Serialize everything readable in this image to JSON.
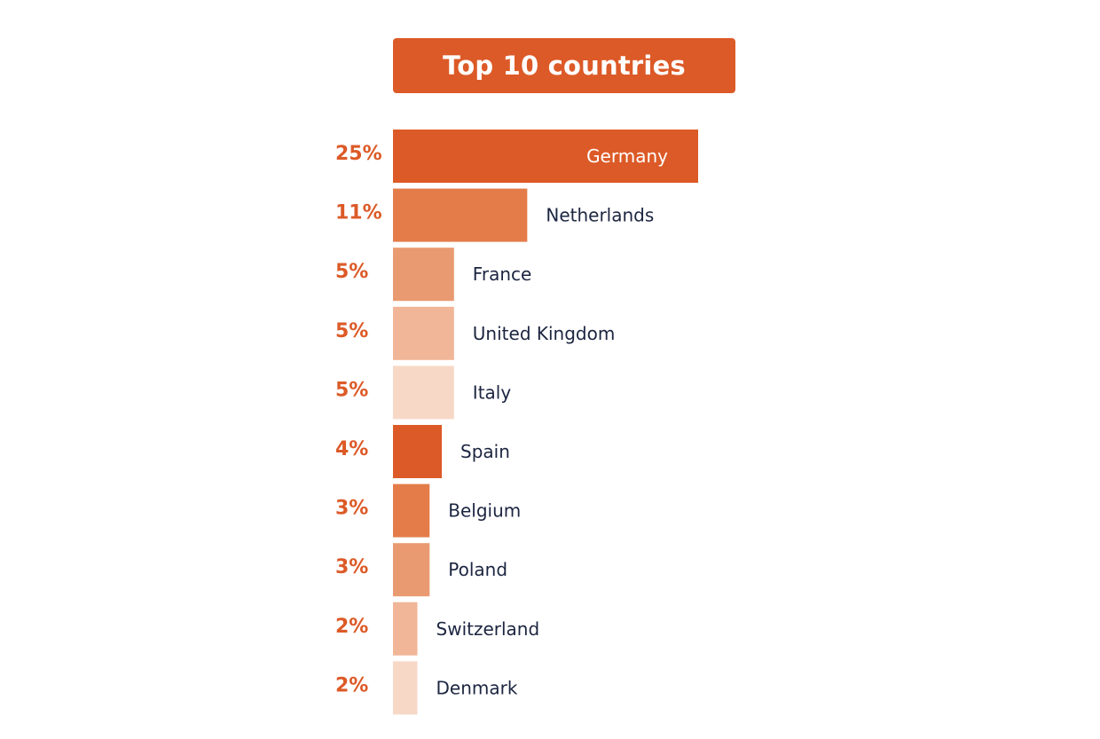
{
  "colors": {
    "accent": "#dc5a27",
    "label_dark": "#1c2540",
    "label_light": "#ffffff"
  },
  "chart_data": {
    "type": "bar",
    "orientation": "horizontal",
    "title": "Top 10 countries",
    "categories": [
      "Germany",
      "Netherlands",
      "France",
      "United Kingdom",
      "Italy",
      "Spain",
      "Belgium",
      "Poland",
      "Switzerland",
      "Denmark"
    ],
    "values": [
      25,
      11,
      5,
      5,
      5,
      4,
      3,
      3,
      2,
      2
    ],
    "value_labels": [
      "25%",
      "11%",
      "5%",
      "5%",
      "5%",
      "4%",
      "3%",
      "3%",
      "2%",
      "2%"
    ],
    "bar_colors": [
      "#dc5a27",
      "#e47c4a",
      "#ea9a70",
      "#f1b697",
      "#f7d8c6",
      "#dc5a27",
      "#e47c4a",
      "#ea9a70",
      "#f1b697",
      "#f7d8c6"
    ],
    "xlabel": "",
    "ylabel": "",
    "legend": "none",
    "grid": false
  }
}
